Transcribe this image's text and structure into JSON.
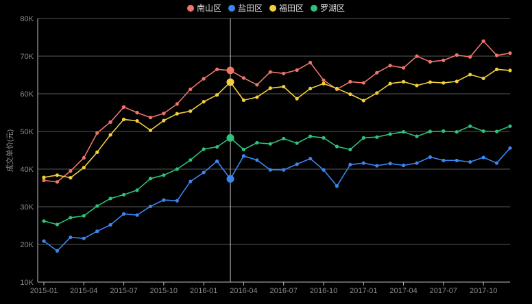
{
  "chart_data": {
    "type": "line",
    "title": "",
    "xlabel": "",
    "ylabel": "成交单价(元)",
    "ylim": [
      10000,
      80000
    ],
    "yticks": [
      {
        "value": 10000,
        "label": "10K"
      },
      {
        "value": 20000,
        "label": "20K"
      },
      {
        "value": 30000,
        "label": "30K"
      },
      {
        "value": 40000,
        "label": "40K"
      },
      {
        "value": 50000,
        "label": "50K"
      },
      {
        "value": 60000,
        "label": "60K"
      },
      {
        "value": 70000,
        "label": "70K"
      },
      {
        "value": 80000,
        "label": "80K"
      }
    ],
    "x": [
      "2015-01",
      "2015-02",
      "2015-03",
      "2015-04",
      "2015-05",
      "2015-06",
      "2015-07",
      "2015-08",
      "2015-09",
      "2015-10",
      "2015-11",
      "2015-12",
      "2016-01",
      "2016-02",
      "2016-03",
      "2016-04",
      "2016-05",
      "2016-06",
      "2016-07",
      "2016-08",
      "2016-09",
      "2016-10",
      "2016-11",
      "2016-12",
      "2017-01",
      "2017-02",
      "2017-03",
      "2017-04",
      "2017-05",
      "2017-06",
      "2017-07",
      "2017-08",
      "2017-09",
      "2017-10",
      "2017-11",
      "2017-12"
    ],
    "xtick_labels": [
      "2015-01",
      "2015-04",
      "2015-07",
      "2015-10",
      "2016-01",
      "2016-04",
      "2016-07",
      "2016-10",
      "2017-01",
      "2017-04",
      "2017-07",
      "2017-10"
    ],
    "hover_index": 14,
    "grid": true,
    "legend_position": "top-center",
    "series": [
      {
        "name": "南山区",
        "color": "#f0756b",
        "values": [
          37000,
          36600,
          39500,
          43000,
          49600,
          52500,
          56500,
          55000,
          53700,
          54800,
          57300,
          61200,
          64000,
          66500,
          66200,
          64200,
          62400,
          65800,
          65400,
          66300,
          68300,
          63600,
          61200,
          63200,
          62900,
          65600,
          67500,
          66900,
          70000,
          68500,
          68900,
          70300,
          69800,
          74000,
          70200,
          70800
        ]
      },
      {
        "name": "盐田区",
        "color": "#3b86f0",
        "values": [
          20900,
          18300,
          21900,
          21600,
          23500,
          25200,
          28100,
          27800,
          30100,
          31800,
          31600,
          36700,
          39100,
          42100,
          37400,
          43500,
          42400,
          39800,
          39800,
          41300,
          42800,
          39800,
          35500,
          41200,
          41600,
          40900,
          41500,
          41000,
          41600,
          43200,
          42300,
          42300,
          41900,
          43100,
          41600,
          45600
        ]
      },
      {
        "name": "福田区",
        "color": "#f2cf3b",
        "values": [
          37800,
          38400,
          37700,
          40400,
          44500,
          49100,
          53200,
          52800,
          50300,
          52900,
          54700,
          55400,
          57900,
          59700,
          63100,
          58300,
          59100,
          61500,
          61900,
          58700,
          61400,
          62700,
          61400,
          59900,
          58200,
          60200,
          62700,
          63200,
          62200,
          63100,
          62900,
          63300,
          65100,
          64100,
          66500,
          66200
        ]
      },
      {
        "name": "罗湖区",
        "color": "#2ec27a",
        "values": [
          26200,
          25300,
          27100,
          27600,
          30200,
          32200,
          33200,
          34400,
          37500,
          38400,
          40000,
          42400,
          45300,
          45900,
          48300,
          45200,
          47000,
          46700,
          48100,
          46900,
          48700,
          48300,
          46000,
          45200,
          48300,
          48500,
          49300,
          49900,
          48700,
          50000,
          50100,
          49900,
          51400,
          50100,
          50000,
          51400
        ]
      }
    ]
  }
}
